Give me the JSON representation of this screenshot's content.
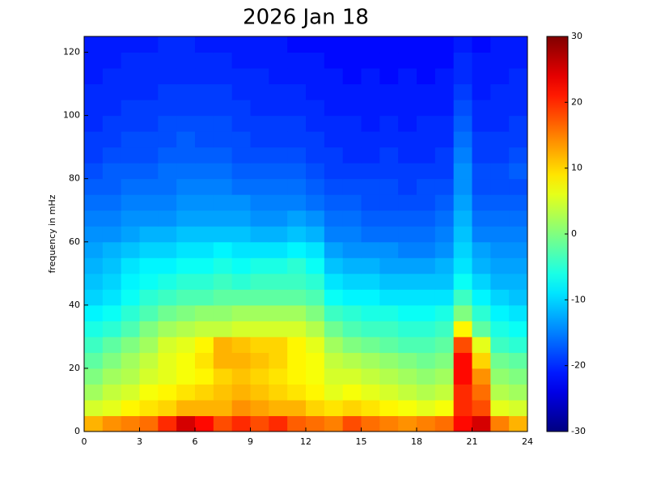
{
  "chart_data": {
    "type": "heatmap",
    "title": "2026 Jan 18",
    "y_label": "frequency in mHz",
    "xlim": [
      0,
      24
    ],
    "xticks": [
      0,
      3,
      6,
      9,
      12,
      15,
      18,
      21,
      24
    ],
    "ylim": [
      0,
      125
    ],
    "yticks": [
      0,
      20,
      40,
      60,
      80,
      100,
      120
    ],
    "zlim": [
      -30,
      30
    ],
    "zticks": [
      -30,
      -20,
      -10,
      0,
      10,
      20,
      30
    ],
    "colormap": "jet",
    "x": [
      0.5,
      1.5,
      2.5,
      3.5,
      4.5,
      5.5,
      6.5,
      7.5,
      8.5,
      9.5,
      10.5,
      11.5,
      12.5,
      13.5,
      14.5,
      15.5,
      16.5,
      17.5,
      18.5,
      19.5,
      20.5,
      21.5,
      22.5,
      23.5
    ],
    "y": [
      2.5,
      7.5,
      12.5,
      17.5,
      22.5,
      27.5,
      32.5,
      37.5,
      42.5,
      47.5,
      52.5,
      57.5,
      62.5,
      67.5,
      72.5,
      77.5,
      82.5,
      87.5,
      92.5,
      97.5,
      102.5,
      107.5,
      112.5,
      117.5,
      122.5
    ],
    "z": [
      [
        12,
        14,
        15,
        16,
        20,
        25,
        22,
        18,
        20,
        18,
        20,
        17,
        16,
        15,
        18,
        16,
        15,
        14,
        15,
        16,
        22,
        25,
        15,
        12
      ],
      [
        5,
        6,
        8,
        9,
        10,
        12,
        12,
        12,
        14,
        13,
        12,
        12,
        10,
        9,
        10,
        9,
        8,
        7,
        6,
        7,
        20,
        18,
        6,
        5
      ],
      [
        2,
        4,
        5,
        7,
        8,
        9,
        10,
        11,
        12,
        11,
        10,
        9,
        8,
        6,
        7,
        6,
        5,
        4,
        3,
        4,
        20,
        16,
        3,
        2
      ],
      [
        0,
        2,
        3,
        5,
        6,
        7,
        8,
        10,
        11,
        10,
        9,
        8,
        7,
        5,
        5,
        4,
        3,
        2,
        1,
        2,
        22,
        14,
        1,
        0
      ],
      [
        -2,
        0,
        2,
        4,
        6,
        7,
        9,
        12,
        12,
        11,
        10,
        8,
        7,
        4,
        3,
        2,
        1,
        0,
        -1,
        0,
        22,
        10,
        -1,
        -2
      ],
      [
        -4,
        -2,
        0,
        2,
        5,
        6,
        8,
        12,
        11,
        10,
        10,
        8,
        6,
        2,
        0,
        -1,
        -2,
        -3,
        -3,
        -2,
        18,
        6,
        -4,
        -5
      ],
      [
        -6,
        -5,
        -3,
        0,
        2,
        3,
        4,
        4,
        5,
        5,
        5,
        5,
        3,
        -1,
        -3,
        -4,
        -4,
        -5,
        -5,
        -4,
        8,
        -2,
        -6,
        -7
      ],
      [
        -8,
        -7,
        -5,
        -3,
        -1,
        0,
        1,
        1,
        2,
        2,
        2,
        2,
        0,
        -4,
        -5,
        -6,
        -6,
        -7,
        -7,
        -6,
        0,
        -5,
        -8,
        -9
      ],
      [
        -10,
        -9,
        -7,
        -5,
        -4,
        -3,
        -3,
        -2,
        -2,
        -2,
        -2,
        -2,
        -3,
        -7,
        -8,
        -8,
        -9,
        -9,
        -9,
        -9,
        -4,
        -8,
        -10,
        -11
      ],
      [
        -11,
        -10,
        -8,
        -7,
        -6,
        -5,
        -5,
        -4,
        -5,
        -4,
        -4,
        -4,
        -5,
        -9,
        -10,
        -10,
        -11,
        -11,
        -11,
        -11,
        -7,
        -10,
        -12,
        -12
      ],
      [
        -12,
        -11,
        -9,
        -8,
        -8,
        -7,
        -7,
        -6,
        -7,
        -6,
        -6,
        -5,
        -7,
        -11,
        -12,
        -12,
        -13,
        -13,
        -13,
        -12,
        -9,
        -12,
        -13,
        -13
      ],
      [
        -13,
        -12,
        -11,
        -10,
        -10,
        -9,
        -9,
        -8,
        -9,
        -9,
        -9,
        -8,
        -9,
        -13,
        -14,
        -14,
        -14,
        -15,
        -15,
        -14,
        -10,
        -13,
        -14,
        -14
      ],
      [
        -14,
        -14,
        -13,
        -12,
        -12,
        -11,
        -11,
        -11,
        -11,
        -12,
        -12,
        -11,
        -12,
        -15,
        -15,
        -16,
        -16,
        -16,
        -16,
        -15,
        -11,
        -15,
        -15,
        -15
      ],
      [
        -15,
        -15,
        -14,
        -14,
        -14,
        -13,
        -13,
        -13,
        -13,
        -14,
        -14,
        -13,
        -14,
        -16,
        -16,
        -17,
        -17,
        -17,
        -17,
        -16,
        -12,
        -16,
        -16,
        -16
      ],
      [
        -16,
        -16,
        -15,
        -15,
        -15,
        -14,
        -14,
        -14,
        -14,
        -15,
        -15,
        -15,
        -16,
        -17,
        -17,
        -18,
        -18,
        -18,
        -18,
        -17,
        -13,
        -17,
        -17,
        -17
      ],
      [
        -17,
        -17,
        -16,
        -16,
        -16,
        -15,
        -15,
        -15,
        -16,
        -16,
        -16,
        -16,
        -17,
        -18,
        -18,
        -18,
        -18,
        -19,
        -18,
        -18,
        -14,
        -18,
        -18,
        -18
      ],
      [
        -18,
        -17,
        -17,
        -17,
        -16,
        -16,
        -16,
        -16,
        -17,
        -17,
        -17,
        -17,
        -18,
        -19,
        -19,
        -19,
        -19,
        -19,
        -19,
        -19,
        -14,
        -18,
        -18,
        -17
      ],
      [
        -19,
        -18,
        -18,
        -18,
        -17,
        -17,
        -17,
        -17,
        -18,
        -18,
        -18,
        -18,
        -19,
        -19,
        -20,
        -20,
        -19,
        -20,
        -20,
        -19,
        -15,
        -19,
        -19,
        -18
      ],
      [
        -19,
        -19,
        -18,
        -18,
        -18,
        -17,
        -18,
        -18,
        -18,
        -19,
        -19,
        -19,
        -19,
        -20,
        -20,
        -20,
        -20,
        -20,
        -20,
        -20,
        -16,
        -19,
        -19,
        -19
      ],
      [
        -20,
        -19,
        -19,
        -19,
        -18,
        -18,
        -18,
        -18,
        -19,
        -19,
        -19,
        -19,
        -20,
        -20,
        -20,
        -21,
        -20,
        -21,
        -20,
        -20,
        -17,
        -20,
        -20,
        -19
      ],
      [
        -20,
        -20,
        -19,
        -19,
        -19,
        -19,
        -19,
        -19,
        -19,
        -20,
        -20,
        -20,
        -20,
        -21,
        -21,
        -21,
        -21,
        -21,
        -21,
        -21,
        -18,
        -20,
        -20,
        -20
      ],
      [
        -20,
        -20,
        -20,
        -20,
        -19,
        -19,
        -19,
        -19,
        -20,
        -20,
        -20,
        -20,
        -21,
        -21,
        -21,
        -21,
        -21,
        -21,
        -21,
        -21,
        -19,
        -21,
        -20,
        -20
      ],
      [
        -21,
        -20,
        -20,
        -20,
        -20,
        -20,
        -20,
        -20,
        -20,
        -20,
        -21,
        -21,
        -21,
        -21,
        -22,
        -21,
        -22,
        -21,
        -22,
        -21,
        -20,
        -21,
        -21,
        -20
      ],
      [
        -21,
        -21,
        -20,
        -20,
        -20,
        -20,
        -20,
        -20,
        -21,
        -21,
        -21,
        -21,
        -21,
        -22,
        -22,
        -22,
        -22,
        -22,
        -22,
        -22,
        -20,
        -21,
        -21,
        -21
      ],
      [
        -21,
        -21,
        -21,
        -21,
        -20,
        -20,
        -21,
        -21,
        -21,
        -21,
        -21,
        -22,
        -22,
        -22,
        -22,
        -22,
        -22,
        -22,
        -22,
        -22,
        -21,
        -22,
        -21,
        -21
      ]
    ]
  }
}
